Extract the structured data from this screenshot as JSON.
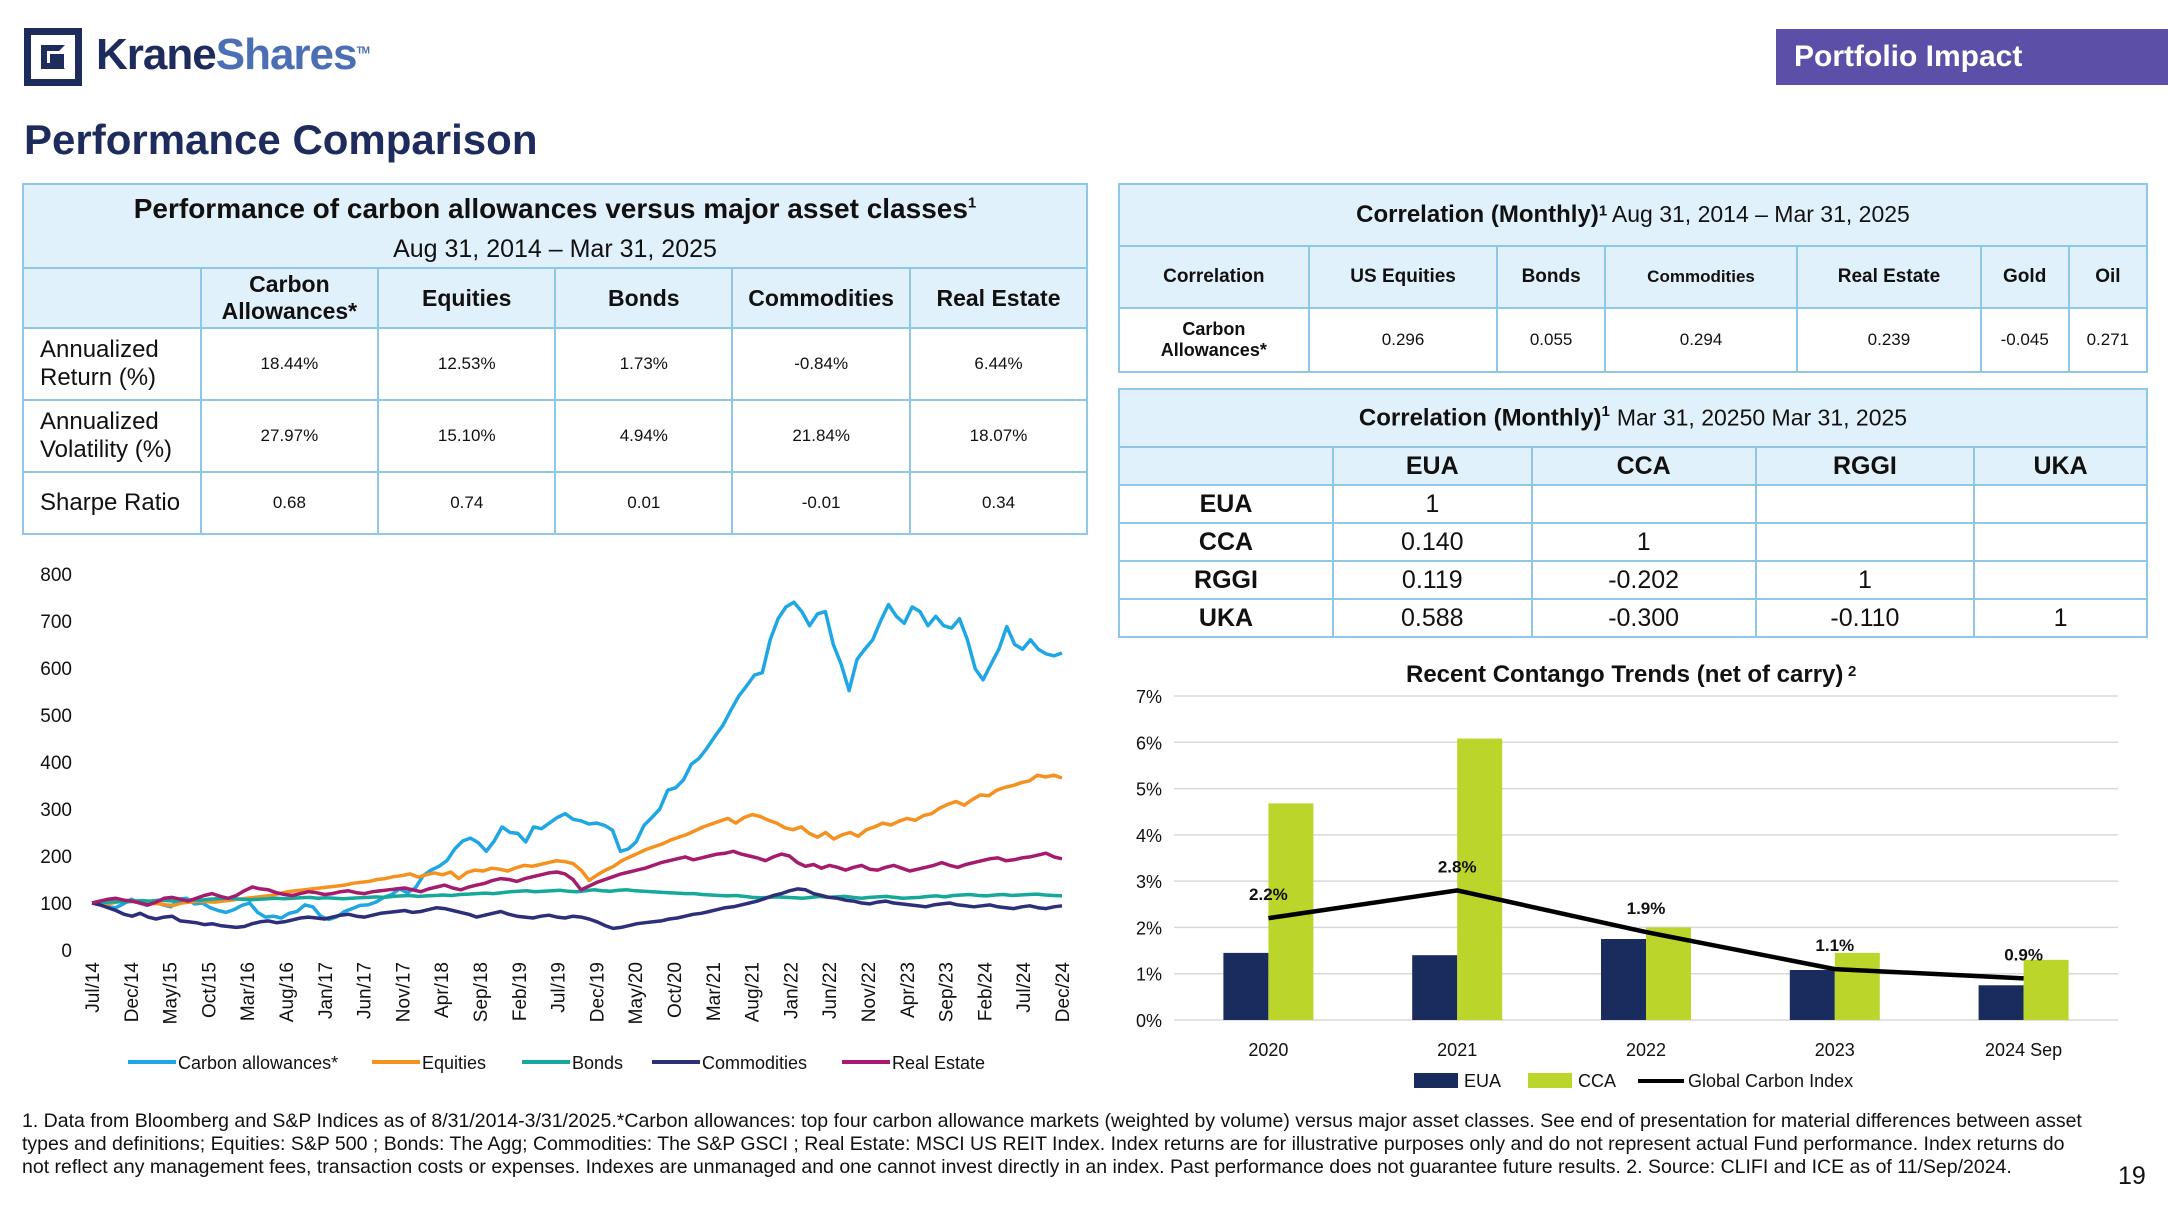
{
  "header": {
    "logo_part1": "Krane",
    "logo_part2": "Shares",
    "logo_tm": "TM",
    "tag": "Portfolio Impact",
    "page_title": "Performance Comparison"
  },
  "colors": {
    "navy": "#1d2c5c",
    "accent_purple": "#5b4fa8",
    "table_border": "#8ec7e8",
    "table_header": "#e1f1fb"
  },
  "perf_table": {
    "title": "Performance of carbon allowances versus major asset classes",
    "title_sup": "1",
    "subtitle": "Aug 31, 2014 – Mar 31, 2025",
    "col1_line1": "Carbon",
    "col1_line2": "Allowances*",
    "columns": [
      "Equities",
      "Bonds",
      "Commodities",
      "Real Estate"
    ],
    "rows": [
      {
        "label_l1": "Annualized",
        "label_l2": "Return (%)",
        "values": [
          "18.44%",
          "12.53%",
          "1.73%",
          "-0.84%",
          "6.44%"
        ]
      },
      {
        "label_l1": "Annualized",
        "label_l2": "Volatility (%)",
        "values": [
          "27.97%",
          "15.10%",
          "4.94%",
          "21.84%",
          "18.07%"
        ]
      },
      {
        "label_l1": "Sharpe Ratio",
        "label_l2": "",
        "values": [
          "0.68",
          "0.74",
          "0.01",
          "-0.01",
          "0.34"
        ]
      }
    ]
  },
  "corr_table_1": {
    "title": "Correlation (Monthly)",
    "title_sup": "1",
    "subtitle": "Aug 31, 2014 – Mar 31, 2025",
    "columns": [
      "Correlation",
      "US Equities",
      "Bonds",
      "Commodities",
      "Real Estate",
      "Gold",
      "Oil"
    ],
    "row_label_l1": "Carbon",
    "row_label_l2": "Allowances*",
    "values": [
      "0.296",
      "0.055",
      "0.294",
      "0.239",
      "-0.045",
      "0.271"
    ]
  },
  "corr_table_2": {
    "title": "Correlation (Monthly)",
    "title_sup": "1",
    "subtitle": "Mar 31, 20250 Mar 31, 2025",
    "columns": [
      "EUA",
      "CCA",
      "RGGI",
      "UKA"
    ],
    "rows": [
      {
        "label": "EUA",
        "values": [
          "1",
          "",
          "",
          ""
        ]
      },
      {
        "label": "CCA",
        "values": [
          "0.140",
          "1",
          "",
          ""
        ]
      },
      {
        "label": "RGGI",
        "values": [
          "0.119",
          "-0.202",
          "1",
          ""
        ]
      },
      {
        "label": "UKA",
        "values": [
          "0.588",
          "-0.300",
          "-0.110",
          "1"
        ]
      }
    ]
  },
  "chart_data": [
    {
      "type": "line",
      "title": "",
      "ylim": [
        0,
        800
      ],
      "yticks": [
        "0",
        "100",
        "200",
        "300",
        "400",
        "500",
        "600",
        "700",
        "800"
      ],
      "xticks": [
        "Jul/14",
        "Dec/14",
        "May/15",
        "Oct/15",
        "Mar/16",
        "Aug/16",
        "Jan/17",
        "Jun/17",
        "Nov/17",
        "Apr/18",
        "Sep/18",
        "Feb/19",
        "Jul/19",
        "Dec/19",
        "May/20",
        "Oct/20",
        "Mar/21",
        "Aug/21",
        "Jan/22",
        "Jun/22",
        "Nov/22",
        "Apr/23",
        "Sep/23",
        "Feb/24",
        "Jul/24",
        "Dec/24"
      ],
      "legend_position": "bottom",
      "series": [
        {
          "name": "Carbon allowances*",
          "color": "#1ea7e4",
          "values": [
            100,
            98,
            92,
            90,
            98,
            108,
            100,
            95,
            102,
            96,
            92,
            108,
            110,
            98,
            100,
            90,
            84,
            80,
            86,
            95,
            100,
            80,
            70,
            72,
            68,
            78,
            82,
            96,
            92,
            72,
            65,
            70,
            82,
            88,
            95,
            96,
            102,
            112,
            118,
            130,
            122,
            132,
            158,
            170,
            178,
            190,
            215,
            232,
            238,
            228,
            210,
            232,
            262,
            250,
            248,
            230,
            262,
            258,
            270,
            282,
            290,
            278,
            275,
            268,
            270,
            265,
            255,
            210,
            215,
            230,
            265,
            282,
            300,
            340,
            345,
            362,
            395,
            408,
            430,
            455,
            478,
            510,
            540,
            562,
            585,
            590,
            660,
            705,
            730,
            740,
            720,
            690,
            715,
            720,
            650,
            608,
            552,
            618,
            640,
            660,
            700,
            735,
            710,
            695,
            730,
            720,
            690,
            710,
            690,
            685,
            705,
            660,
            598,
            575,
            608,
            640,
            688,
            650,
            640,
            660,
            640,
            630,
            626,
            632
          ]
        },
        {
          "name": "Equities",
          "color": "#f5911e",
          "values": [
            100,
            101,
            98,
            102,
            104,
            103,
            100,
            98,
            99,
            96,
            95,
            100,
            102,
            104,
            103,
            102,
            104,
            106,
            108,
            110,
            112,
            114,
            116,
            120,
            124,
            126,
            128,
            130,
            132,
            134,
            136,
            138,
            142,
            144,
            146,
            150,
            152,
            156,
            158,
            162,
            155,
            160,
            164,
            160,
            166,
            152,
            165,
            170,
            168,
            174,
            172,
            168,
            175,
            180,
            178,
            182,
            186,
            190,
            188,
            184,
            170,
            148,
            160,
            170,
            178,
            190,
            198,
            206,
            214,
            220,
            226,
            234,
            240,
            246,
            254,
            262,
            268,
            274,
            280,
            270,
            282,
            288,
            284,
            276,
            270,
            260,
            256,
            262,
            248,
            240,
            250,
            236,
            245,
            250,
            242,
            256,
            262,
            270,
            266,
            274,
            280,
            276,
            286,
            290,
            302,
            310,
            316,
            308,
            320,
            330,
            328,
            340,
            346,
            350,
            356,
            360,
            372,
            368,
            372,
            366
          ]
        },
        {
          "name": "Bonds",
          "color": "#17a89c",
          "values": [
            100,
            101,
            102,
            103,
            102,
            104,
            105,
            104,
            106,
            105,
            104,
            106,
            107,
            106,
            108,
            109,
            110,
            109,
            108,
            107,
            108,
            109,
            110,
            109,
            110,
            111,
            112,
            110,
            111,
            110,
            109,
            110,
            111,
            112,
            113,
            112,
            114,
            115,
            116,
            114,
            115,
            116,
            117,
            116,
            118,
            119,
            120,
            121,
            120,
            122,
            124,
            125,
            126,
            124,
            125,
            126,
            127,
            125,
            124,
            126,
            128,
            126,
            125,
            127,
            128,
            126,
            125,
            124,
            123,
            122,
            121,
            120,
            120,
            118,
            117,
            116,
            115,
            116,
            114,
            112,
            111,
            112,
            113,
            112,
            111,
            110,
            112,
            114,
            112,
            113,
            114,
            112,
            110,
            112,
            113,
            114,
            112,
            110,
            111,
            112,
            114,
            115,
            113,
            116,
            117,
            118,
            116,
            115,
            117,
            118,
            116,
            117,
            118,
            119,
            117,
            116,
            115
          ]
        },
        {
          "name": "Commodities",
          "color": "#2d2f7a",
          "values": [
            100,
            96,
            90,
            84,
            76,
            72,
            78,
            70,
            66,
            70,
            72,
            62,
            60,
            58,
            54,
            56,
            52,
            50,
            48,
            50,
            56,
            60,
            62,
            58,
            60,
            64,
            68,
            70,
            68,
            66,
            70,
            74,
            76,
            72,
            70,
            74,
            78,
            80,
            82,
            84,
            80,
            82,
            86,
            90,
            88,
            84,
            80,
            76,
            70,
            74,
            78,
            82,
            76,
            72,
            70,
            68,
            72,
            74,
            70,
            68,
            72,
            70,
            66,
            60,
            52,
            46,
            48,
            52,
            56,
            58,
            60,
            62,
            66,
            68,
            72,
            76,
            78,
            82,
            86,
            90,
            92,
            96,
            100,
            104,
            110,
            116,
            120,
            126,
            130,
            128,
            120,
            116,
            112,
            110,
            106,
            104,
            100,
            98,
            102,
            104,
            100,
            98,
            96,
            94,
            92,
            96,
            98,
            100,
            96,
            94,
            92,
            94,
            96,
            92,
            90,
            88,
            92,
            94,
            90,
            88,
            92,
            94
          ]
        },
        {
          "name": "Real Estate",
          "color": "#a51c6e",
          "values": [
            100,
            104,
            108,
            110,
            106,
            104,
            100,
            96,
            102,
            110,
            112,
            108,
            104,
            110,
            116,
            120,
            114,
            110,
            116,
            126,
            134,
            130,
            128,
            122,
            118,
            116,
            120,
            124,
            122,
            118,
            120,
            124,
            126,
            122,
            120,
            124,
            126,
            128,
            130,
            132,
            128,
            124,
            130,
            134,
            138,
            132,
            128,
            134,
            138,
            142,
            148,
            152,
            150,
            146,
            152,
            156,
            160,
            164,
            166,
            162,
            150,
            128,
            136,
            144,
            150,
            156,
            162,
            166,
            170,
            174,
            180,
            186,
            190,
            194,
            198,
            192,
            196,
            200,
            204,
            206,
            210,
            204,
            200,
            196,
            190,
            198,
            204,
            200,
            186,
            178,
            182,
            174,
            180,
            176,
            170,
            176,
            180,
            172,
            170,
            176,
            180,
            174,
            168,
            172,
            176,
            180,
            186,
            180,
            176,
            182,
            186,
            190,
            194,
            196,
            190,
            192,
            196,
            198,
            202,
            206,
            198,
            194
          ]
        }
      ]
    },
    {
      "type": "bar",
      "title": "Recent Contango Trends (net of carry)",
      "title_sup": "2",
      "categories": [
        "2020",
        "2021",
        "2022",
        "2023",
        "2024 Sep"
      ],
      "ylim": [
        0,
        7
      ],
      "yticks": [
        "0%",
        "1%",
        "2%",
        "3%",
        "4%",
        "5%",
        "6%",
        "7%"
      ],
      "legend_position": "bottom",
      "series": [
        {
          "name": "EUA",
          "color": "#1a2b5e",
          "values": [
            1.45,
            1.4,
            1.75,
            1.08,
            0.75
          ]
        },
        {
          "name": "CCA",
          "color": "#bcd52b",
          "values": [
            4.68,
            6.08,
            2.0,
            1.45,
            1.3
          ]
        },
        {
          "name": "Global Carbon Index",
          "color": "#000000",
          "type": "line",
          "values": [
            2.2,
            2.8,
            1.9,
            1.1,
            0.9
          ],
          "labels": [
            "2.2%",
            "2.8%",
            "1.9%",
            "1.1%",
            "0.9%"
          ]
        }
      ]
    }
  ],
  "footnote": "1. Data from Bloomberg and S&P Indices as of 8/31/2014-3/31/2025.*Carbon allowances: top four carbon allowance markets (weighted by volume) versus major asset classes. See end of presentation for material differences between asset types and definitions; Equities: S&P 500 ; Bonds: The Agg; Commodities: The S&P GSCI ; Real Estate: MSCI US REIT Index. Index returns are for illustrative purposes only and do not represent actual Fund performance. Index returns do not reflect any management fees, transaction costs or expenses. Indexes are unmanaged and one cannot invest directly in an index. Past performance does not guarantee future results. 2. Source: CLIFI and ICE as of 11/Sep/2024.",
  "page_number": "19"
}
